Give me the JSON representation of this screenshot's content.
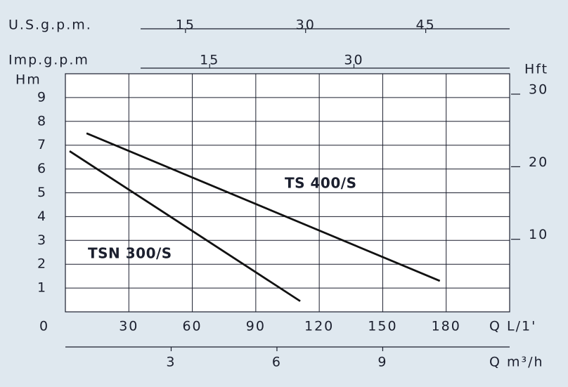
{
  "chart_data": {
    "type": "line",
    "xlabel": "Q  L/1'",
    "ylabel": "Hm",
    "origin_label": "0",
    "xlim": [
      0,
      210
    ],
    "xticks": [
      30,
      60,
      90,
      120,
      150,
      180
    ],
    "ylim": [
      0,
      10
    ],
    "yticks": [
      1,
      2,
      3,
      4,
      5,
      6,
      7,
      8,
      9
    ],
    "y2label": "Hft",
    "y2lim": [
      0,
      32.81
    ],
    "y2ticks": [
      10,
      20,
      30
    ],
    "grid": true,
    "top_axes": [
      {
        "label": "U.S.g.p.m.",
        "xlim": [
          0,
          55.48
        ],
        "xticks": [
          15,
          30,
          45
        ]
      },
      {
        "label": "Imp.g.p.m",
        "xlim": [
          0,
          46.19
        ],
        "xticks": [
          15,
          30
        ]
      }
    ],
    "bottom_axis": {
      "label": "Q  m³/h",
      "xlim": [
        0,
        12.6
      ],
      "xticks": [
        3,
        6,
        9
      ]
    },
    "series": [
      {
        "name": "TS 400/S",
        "color": "#111111",
        "x": [
          10,
          177
        ],
        "values": [
          7.5,
          1.3
        ]
      },
      {
        "name": "TSN 300/S",
        "color": "#111111",
        "x": [
          2,
          111
        ],
        "values": [
          6.75,
          0.45
        ]
      }
    ]
  }
}
